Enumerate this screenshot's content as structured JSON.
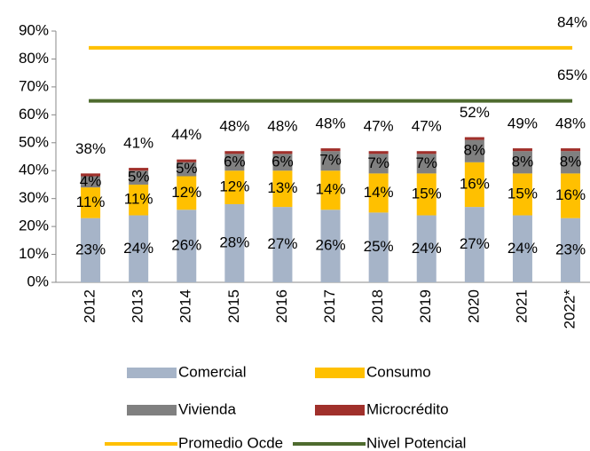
{
  "chart_data": {
    "type": "stacked_bar",
    "categories": [
      "2012",
      "2013",
      "2014",
      "2015",
      "2016",
      "2017",
      "2018",
      "2019",
      "2020",
      "2021",
      "2022*"
    ],
    "series": [
      {
        "name": "Comercial",
        "color": "#a6b4c8",
        "values": [
          23,
          24,
          26,
          28,
          27,
          26,
          25,
          24,
          27,
          24,
          23
        ],
        "value_labels": [
          "23%",
          "24%",
          "26%",
          "28%",
          "27%",
          "26%",
          "25%",
          "24%",
          "27%",
          "24%",
          "23%"
        ]
      },
      {
        "name": "Consumo",
        "color": "#ffc000",
        "values": [
          11,
          11,
          12,
          12,
          13,
          14,
          14,
          15,
          16,
          15,
          16
        ],
        "value_labels": [
          "11%",
          "11%",
          "12%",
          "12%",
          "13%",
          "14%",
          "14%",
          "15%",
          "16%",
          "15%",
          "16%"
        ]
      },
      {
        "name": "Vivienda",
        "color": "#808080",
        "values": [
          4,
          5,
          5,
          6,
          6,
          7,
          7,
          7,
          8,
          8,
          8
        ],
        "value_labels": [
          "4%",
          "5%",
          "5%",
          "6%",
          "6%",
          "7%",
          "7%",
          "7%",
          "8%",
          "8%",
          "8%"
        ]
      },
      {
        "name": "Microcrédito",
        "color": "#a0302b",
        "values": [
          1,
          1,
          1,
          1,
          1,
          1,
          1,
          1,
          1,
          1,
          1
        ]
      }
    ],
    "totals": [
      "38%",
      "41%",
      "44%",
      "48%",
      "48%",
      "48%",
      "47%",
      "47%",
      "52%",
      "49%",
      "48%"
    ],
    "lines": [
      {
        "name": "Promedio Ocde",
        "color": "#ffc000",
        "value": 84,
        "value_label": "84%"
      },
      {
        "name": "Nivel Potencial",
        "color": "#4e6b2e",
        "value": 65,
        "value_label": "65%"
      }
    ],
    "ylim": [
      0,
      90
    ],
    "yticks": [
      {
        "value": 0,
        "label": "0%"
      },
      {
        "value": 10,
        "label": "10%"
      },
      {
        "value": 20,
        "label": "20%"
      },
      {
        "value": 30,
        "label": "30%"
      },
      {
        "value": 40,
        "label": "40%"
      },
      {
        "value": 50,
        "label": "50%"
      },
      {
        "value": 60,
        "label": "60%"
      },
      {
        "value": 70,
        "label": "70%"
      },
      {
        "value": 80,
        "label": "80%"
      },
      {
        "value": 90,
        "label": "90%"
      }
    ]
  }
}
